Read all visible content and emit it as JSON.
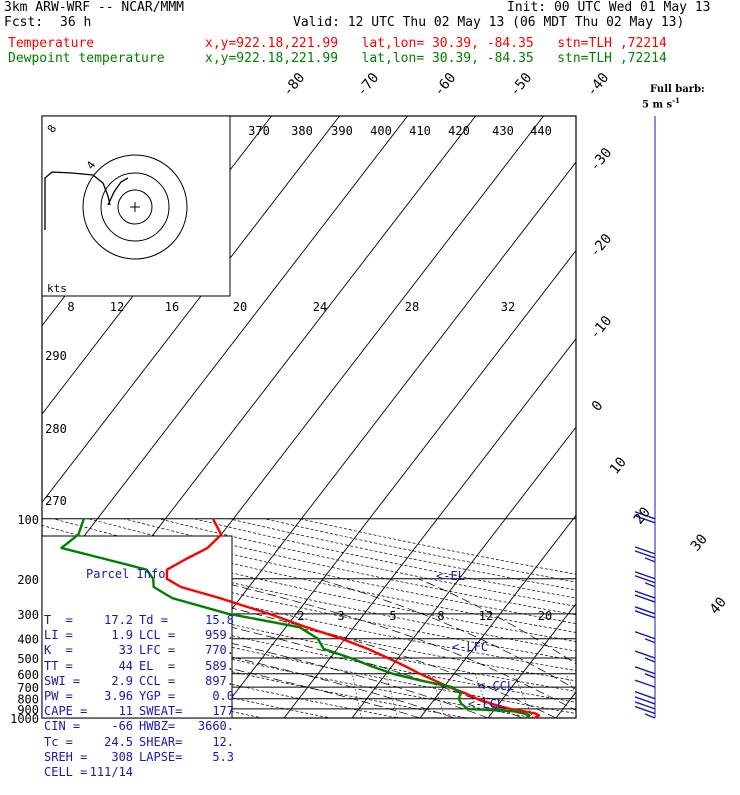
{
  "header": {
    "model": "3km ARW-WRF -- NCAR/MMM",
    "init": "Init: 00 UTC Wed 01 May 13",
    "fcst_label": "Fcst:",
    "fcst_value": "36 h",
    "valid": "Valid: 12 UTC Thu 02 May 13 (06 MDT Thu 02 May 13)",
    "line_temp_name": "Temperature",
    "line_temp_loc": "x,y=922.18,221.99   lat,lon= 30.39, -84.35   stn=TLH ,72214",
    "line_dew_name": "Dewpoint temperature",
    "line_dew_loc": "x,y=922.18,221.99   lat,lon= 30.39, -84.35   stn=TLH ,72214"
  },
  "colors": {
    "temperature": "#ff0000",
    "dewpoint": "#008000",
    "parcel_info": "#1818b0",
    "wind_barbs": "#1818b0"
  },
  "barb_key": {
    "line1": "Full barb:",
    "line2": "5 m s",
    "exp": "-1"
  },
  "hodograph": {
    "units": "kts",
    "ring_labels": [
      "8",
      "12",
      "16",
      "20",
      "24",
      "28",
      "32"
    ],
    "axis_label_tl": "8",
    "axis_label_mid": "4"
  },
  "parcel_info": {
    "title": "Parcel Info",
    "rows": [
      [
        "T  =",
        "17.2",
        "Td =",
        "15.8"
      ],
      [
        "LI =",
        "1.9",
        "LCL =",
        "959."
      ],
      [
        "K  =",
        "33",
        "LFC =",
        "770."
      ],
      [
        "TT =",
        "44",
        "EL  =",
        "589."
      ],
      [
        "SWI =",
        "2.9",
        "CCL =",
        "897."
      ],
      [
        "PW =",
        "3.96",
        "YGP =",
        "0.0"
      ],
      [
        "CAPE =",
        "11",
        "SWEAT=",
        "177"
      ],
      [
        "CIN =",
        "-66",
        "HWBZ=",
        "3660."
      ],
      [
        "Tc =",
        "24.5",
        "SHEAR=",
        "12."
      ],
      [
        "SREH =",
        "308",
        "LAPSE=",
        "5.3"
      ],
      [
        "CELL =",
        "111/14",
        "",
        ""
      ]
    ]
  },
  "levels_markers": {
    "el": "<-EL",
    "lfc": "<-LFC",
    "ccl": "<-CCL",
    "lcl": "<-LCL"
  },
  "chart_data": {
    "type": "line",
    "title": "",
    "ylabel": "",
    "pressure_ticks": [
      "100",
      "200",
      "300",
      "400",
      "500",
      "600",
      "700",
      "800",
      "900",
      "1000"
    ],
    "temperature_ticks": [
      "-80",
      "-70",
      "-60",
      "-50",
      "-40",
      "-30",
      "-20",
      "-10",
      "0",
      "10",
      "20",
      "30",
      "40"
    ],
    "theta_ticks": [
      "370",
      "380",
      "390",
      "400",
      "410",
      "420",
      "430",
      "440"
    ],
    "theta_left_ticks": [
      "290",
      "280",
      "270"
    ],
    "mixing_ratio_ticks": [
      "2",
      "3",
      "5",
      "8",
      "12",
      "20"
    ],
    "series": [
      {
        "name": "Temperature",
        "points": [
          [
            1000,
            16.8
          ],
          [
            970,
            17.2
          ],
          [
            950,
            16.5
          ],
          [
            925,
            14.5
          ],
          [
            900,
            12.2
          ],
          [
            850,
            9.0
          ],
          [
            800,
            6.2
          ],
          [
            750,
            3.8
          ],
          [
            700,
            0.8
          ],
          [
            650,
            -2.0
          ],
          [
            600,
            -5.0
          ],
          [
            550,
            -8.0
          ],
          [
            500,
            -11.5
          ],
          [
            450,
            -15.5
          ],
          [
            400,
            -20.5
          ],
          [
            350,
            -27.0
          ],
          [
            300,
            -34.0
          ],
          [
            250,
            -43.0
          ],
          [
            220,
            -50.0
          ],
          [
            200,
            -53.0
          ],
          [
            180,
            -54.0
          ],
          [
            160,
            -52.5
          ],
          [
            140,
            -50.5
          ],
          [
            120,
            -50.0
          ],
          [
            100,
            -53.0
          ]
        ]
      },
      {
        "name": "Dewpoint temperature",
        "points": [
          [
            1000,
            15.6
          ],
          [
            970,
            15.8
          ],
          [
            950,
            14.8
          ],
          [
            925,
            13.0
          ],
          [
            900,
            6.0
          ],
          [
            850,
            4.5
          ],
          [
            800,
            3.5
          ],
          [
            750,
            3.2
          ],
          [
            700,
            1.2
          ],
          [
            650,
            -4.0
          ],
          [
            600,
            -9.0
          ],
          [
            550,
            -13.0
          ],
          [
            500,
            -17.0
          ],
          [
            450,
            -22.0
          ],
          [
            400,
            -24.0
          ],
          [
            350,
            -28.0
          ],
          [
            300,
            -40.0
          ],
          [
            250,
            -50.0
          ],
          [
            220,
            -54.0
          ],
          [
            200,
            -55.0
          ],
          [
            180,
            -57.0
          ],
          [
            160,
            -64.0
          ],
          [
            140,
            -72.0
          ],
          [
            120,
            -71.0
          ],
          [
            100,
            -72.0
          ]
        ]
      }
    ],
    "wind_profile": [
      {
        "p": 1000,
        "speed_ms": 5,
        "dir": 200
      },
      {
        "p": 950,
        "speed_ms": 10,
        "dir": 215
      },
      {
        "p": 900,
        "speed_ms": 10,
        "dir": 220
      },
      {
        "p": 850,
        "speed_ms": 10,
        "dir": 230
      },
      {
        "p": 800,
        "speed_ms": 10,
        "dir": 235
      },
      {
        "p": 700,
        "speed_ms": 10,
        "dir": 245
      },
      {
        "p": 600,
        "speed_ms": 15,
        "dir": 250
      },
      {
        "p": 500,
        "speed_ms": 15,
        "dir": 255
      },
      {
        "p": 400,
        "speed_ms": 15,
        "dir": 260
      },
      {
        "p": 300,
        "speed_ms": 20,
        "dir": 265
      },
      {
        "p": 250,
        "speed_ms": 20,
        "dir": 270
      },
      {
        "p": 200,
        "speed_ms": 25,
        "dir": 270
      },
      {
        "p": 150,
        "speed_ms": 25,
        "dir": 275
      },
      {
        "p": 100,
        "speed_ms": 20,
        "dir": 270
      }
    ]
  }
}
